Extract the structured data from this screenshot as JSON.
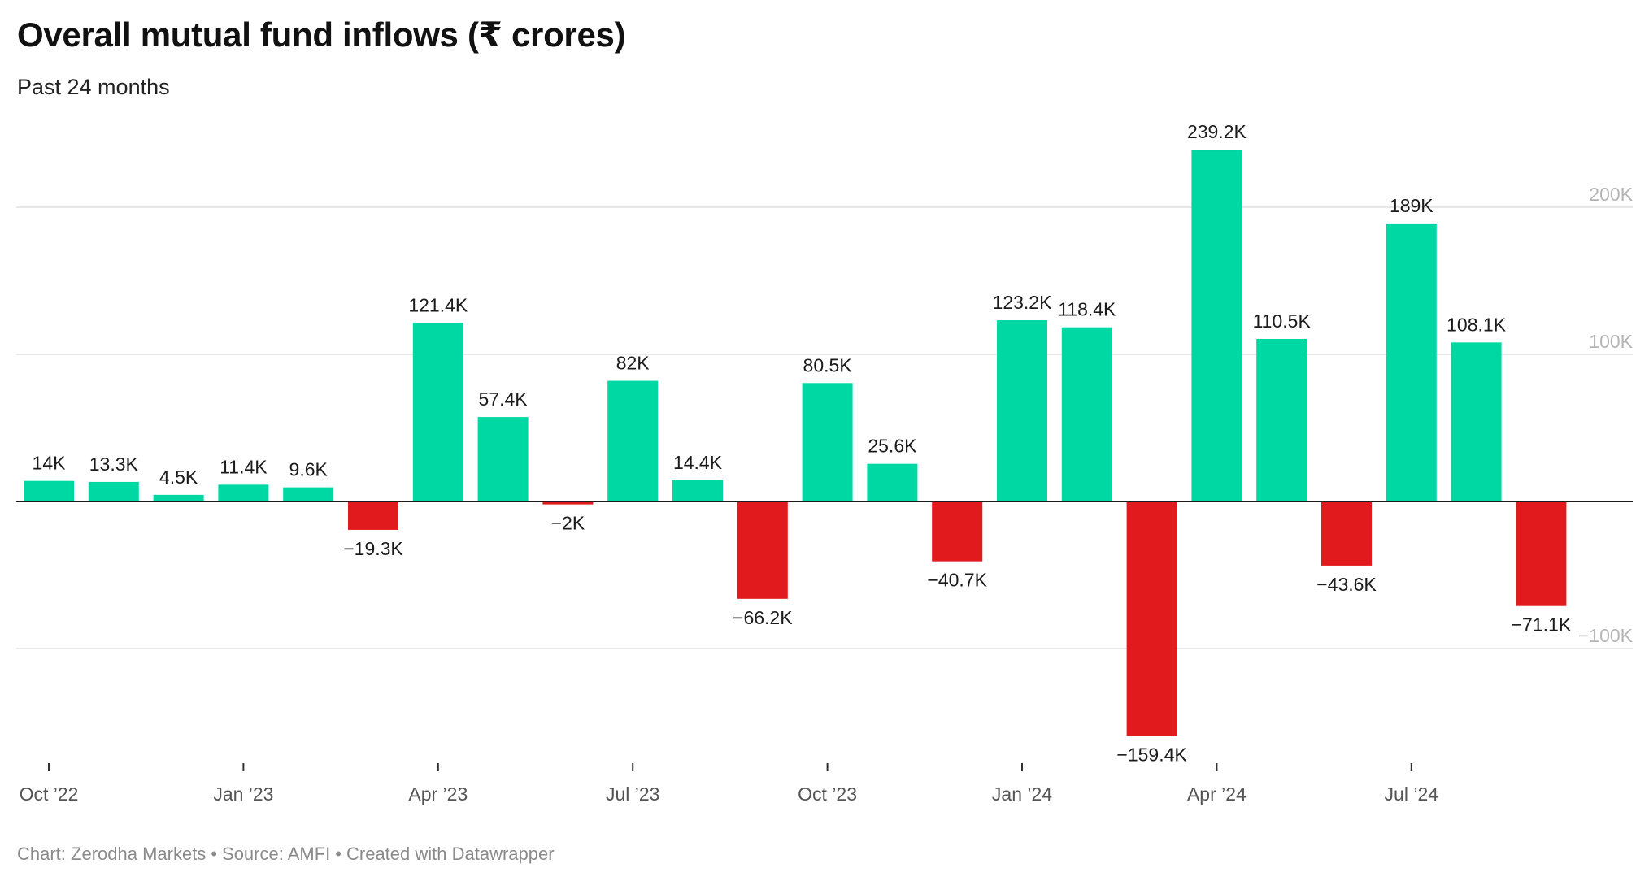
{
  "header": {
    "title": "Overall mutual fund inflows (₹ crores)",
    "subtitle": "Past 24 months"
  },
  "footer": {
    "chart_credit": "Chart: Zerodha Markets",
    "source": "Source: AMFI",
    "created_with": "Created with Datawrapper",
    "separator": "•"
  },
  "colors": {
    "positive": "#00d8a4",
    "negative": "#e11b1d",
    "gridline": "#e0e0e0",
    "zero_line": "#1b1b1b",
    "axis_label": "#b5b5b5",
    "tick_label": "#555555"
  },
  "chart_data": {
    "type": "bar",
    "categories": [
      "Oct 2022",
      "Nov 2022",
      "Dec 2022",
      "Jan 2023",
      "Feb 2023",
      "Mar 2023",
      "Apr 2023",
      "May 2023",
      "Jun 2023",
      "Jul 2023",
      "Aug 2023",
      "Sep 2023",
      "Oct 2023",
      "Nov 2023",
      "Dec 2023",
      "Jan 2024",
      "Feb 2024",
      "Mar 2024",
      "Apr 2024",
      "May 2024",
      "Jun 2024",
      "Jul 2024",
      "Aug 2024",
      "Sep 2024"
    ],
    "values": [
      14000,
      13300,
      4500,
      11400,
      9600,
      -19300,
      121400,
      57400,
      -2000,
      82000,
      14400,
      -66200,
      80500,
      25600,
      -40700,
      123200,
      118400,
      -159400,
      239200,
      110500,
      -43600,
      189000,
      108100,
      -71100
    ],
    "data_labels": [
      "14K",
      "13.3K",
      "4.5K",
      "11.4K",
      "9.6K",
      "−19.3K",
      "121.4K",
      "57.4K",
      "−2K",
      "82K",
      "14.4K",
      "−66.2K",
      "80.5K",
      "25.6K",
      "−40.7K",
      "123.2K",
      "118.4K",
      "−159.4K",
      "239.2K",
      "110.5K",
      "−43.6K",
      "189K",
      "108.1K",
      "−71.1K"
    ],
    "x_ticks": [
      {
        "index": 0,
        "label": "Oct ’22"
      },
      {
        "index": 3,
        "label": "Jan ’23"
      },
      {
        "index": 6,
        "label": "Apr ’23"
      },
      {
        "index": 9,
        "label": "Jul ’23"
      },
      {
        "index": 12,
        "label": "Oct ’23"
      },
      {
        "index": 15,
        "label": "Jan ’24"
      },
      {
        "index": 18,
        "label": "Apr ’24"
      },
      {
        "index": 21,
        "label": "Jul ’24"
      }
    ],
    "y_ticks": [
      {
        "value": 200000,
        "label": "200K"
      },
      {
        "value": 100000,
        "label": "100K"
      },
      {
        "value": -100000,
        "label": "−100K"
      }
    ],
    "ylim": [
      -172000,
      250000
    ],
    "grid": true,
    "y_axis_position": "right",
    "xlabel": "",
    "ylabel": ""
  }
}
